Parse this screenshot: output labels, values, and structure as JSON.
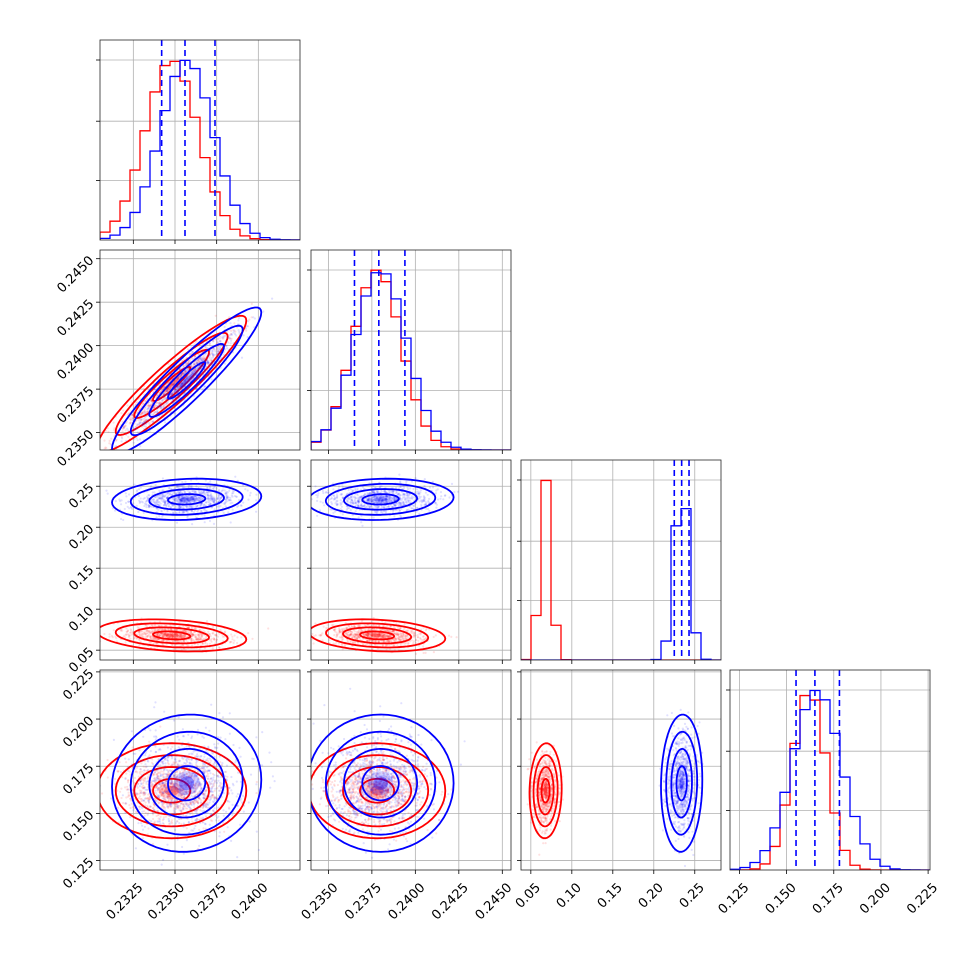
{
  "colors": {
    "series_a": "#0000ff",
    "series_b": "#ff0000",
    "quantile": "#0000ff"
  },
  "chart_data": {
    "type": "scatter",
    "subtype": "corner-plot",
    "grid": true,
    "title": "",
    "xlabel": "",
    "ylabel": "",
    "parameters": [
      {
        "range": [
          0.2305,
          0.2425
        ],
        "ticks": [
          0.2325,
          0.235,
          0.2375,
          0.24
        ],
        "tick_labels": [
          "0.2325",
          "0.2350",
          "0.2375",
          "0.2400"
        ],
        "quantiles": [
          0.2342,
          0.2356,
          0.2374
        ],
        "marginal": {
          "series_a": {
            "mean": 0.2357,
            "sd": 0.0016
          },
          "series_b": {
            "mean": 0.2348,
            "sd": 0.0016
          }
        }
      },
      {
        "range": [
          0.234,
          0.2455
        ],
        "ticks": [
          0.235,
          0.2375,
          0.24,
          0.2425,
          0.245
        ],
        "tick_labels": [
          "0.2350",
          "0.2375",
          "0.2400",
          "0.2425",
          "0.2450"
        ],
        "quantiles": [
          0.2365,
          0.2379,
          0.2394
        ],
        "marginal": {
          "series_a": {
            "mean": 0.238,
            "sd": 0.0015
          },
          "series_b": {
            "mean": 0.2378,
            "sd": 0.0014
          }
        }
      },
      {
        "range": [
          0.038,
          0.282
        ],
        "ticks": [
          0.05,
          0.1,
          0.15,
          0.2,
          0.25
        ],
        "tick_labels": [
          "0.05",
          "0.10",
          "0.15",
          "0.20",
          "0.25"
        ],
        "quantiles": [
          0.225,
          0.234,
          0.243
        ],
        "marginal": {
          "series_a": {
            "mean": 0.234,
            "sd": 0.009
          },
          "series_b": {
            "mean": 0.068,
            "sd": 0.007
          }
        }
      },
      {
        "range": [
          0.12,
          0.226
        ],
        "ticks": [
          0.125,
          0.15,
          0.175,
          0.2,
          0.225
        ],
        "tick_labels": [
          "0.125",
          "0.150",
          "0.175",
          "0.200",
          "0.225"
        ],
        "quantiles": [
          0.155,
          0.165,
          0.178
        ],
        "marginal": {
          "series_a": {
            "mean": 0.166,
            "sd": 0.013
          },
          "series_b": {
            "mean": 0.162,
            "sd": 0.009
          }
        }
      }
    ],
    "correlations": {
      "series_a": {
        "1-0": 0.93,
        "2-0": 0.15,
        "2-1": 0.1,
        "3-0": 0.05,
        "3-1": 0.0,
        "3-2": 0.05
      },
      "series_b": {
        "1-0": 0.93,
        "2-0": -0.25,
        "2-1": -0.2,
        "3-0": 0.0,
        "3-1": 0.0,
        "3-2": 0.05
      }
    },
    "contour_levels_sigma": [
      0.5,
      1.0,
      1.5,
      2.0
    ]
  }
}
